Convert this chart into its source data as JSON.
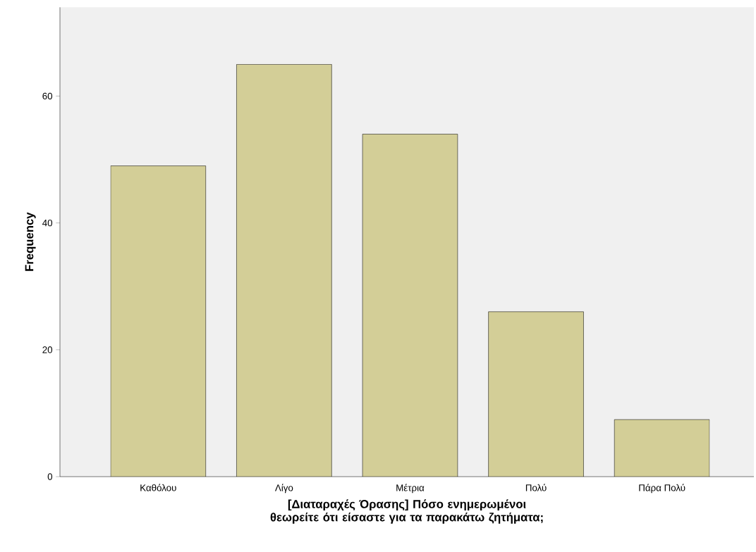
{
  "chart_data": {
    "type": "bar",
    "xlabel": "[Διαταραχές Όρασης] Πόσο ενημερωμένοι θεωρείτε ότι είσαστε για τα παρακάτω ζητήματα;",
    "ylabel": "Frequency",
    "categories": [
      "Καθόλου",
      "Λίγο",
      "Μέτρια",
      "Πολύ",
      "Πάρα Πολύ"
    ],
    "values": [
      49,
      65,
      54,
      26,
      9
    ],
    "color": "#d3ce97",
    "ylim": [
      0,
      74
    ],
    "yticks": [
      0,
      20,
      40,
      60
    ]
  }
}
